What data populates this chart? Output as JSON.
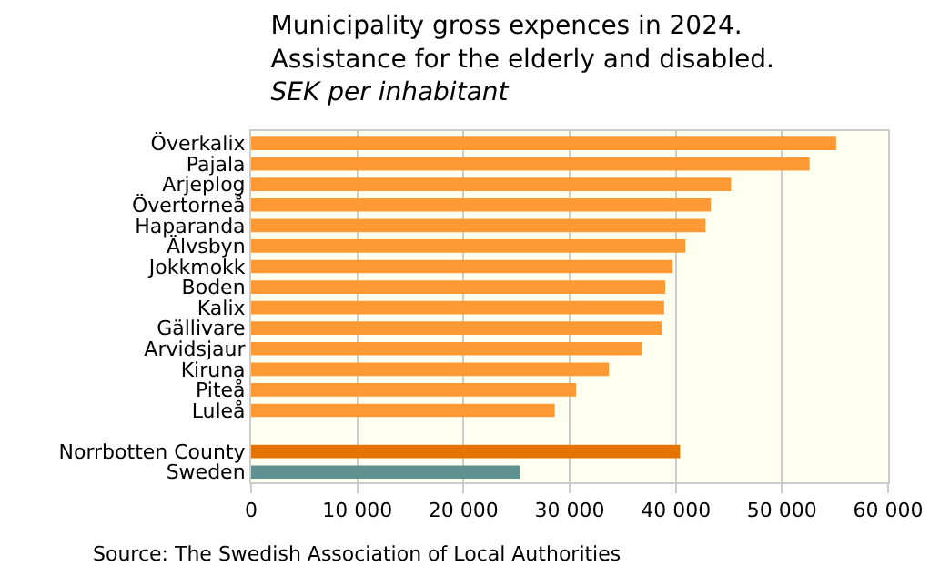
{
  "chart_data": {
    "type": "bar",
    "orientation": "horizontal",
    "title": "Municipality gross expences in 2024. Assistance for the elderly and disabled.",
    "subtitle": "SEK per inhabitant",
    "categories": [
      "Överkalix",
      "Pajala",
      "Arjeplog",
      "Övertorneå",
      "Haparanda",
      "Älvsbyn",
      "Jokkmokk",
      "Boden",
      "Kalix",
      "Gällivare",
      "Arvidsjaur",
      "Kiruna",
      "Piteå",
      "Luleå",
      null,
      "Norrbotten County",
      "Sweden"
    ],
    "values": [
      55100,
      52600,
      45200,
      43300,
      42800,
      40900,
      39700,
      39000,
      38900,
      38700,
      36800,
      33700,
      30600,
      28600,
      null,
      40400,
      25300
    ],
    "colors": [
      "#ff9933",
      "#ff9933",
      "#ff9933",
      "#ff9933",
      "#ff9933",
      "#ff9933",
      "#ff9933",
      "#ff9933",
      "#ff9933",
      "#ff9933",
      "#ff9933",
      "#ff9933",
      "#ff9933",
      "#ff9933",
      "#ff9933",
      "#e57300",
      "#5f9190"
    ],
    "xlim": [
      0,
      60000
    ],
    "xticks": [
      0,
      {
        "value": 10000,
        "label": "10 000"
      },
      {
        "value": 20000,
        "label": "20 000"
      },
      {
        "value": 30000,
        "label": "30 000"
      },
      {
        "value": 40000,
        "label": "40 000"
      },
      {
        "value": 50000,
        "label": "50 000"
      },
      {
        "value": 60000,
        "label": "60 000"
      }
    ],
    "grid": "x",
    "annotations": [
      "Source: The Swedish Association of Local Authorities"
    ]
  }
}
